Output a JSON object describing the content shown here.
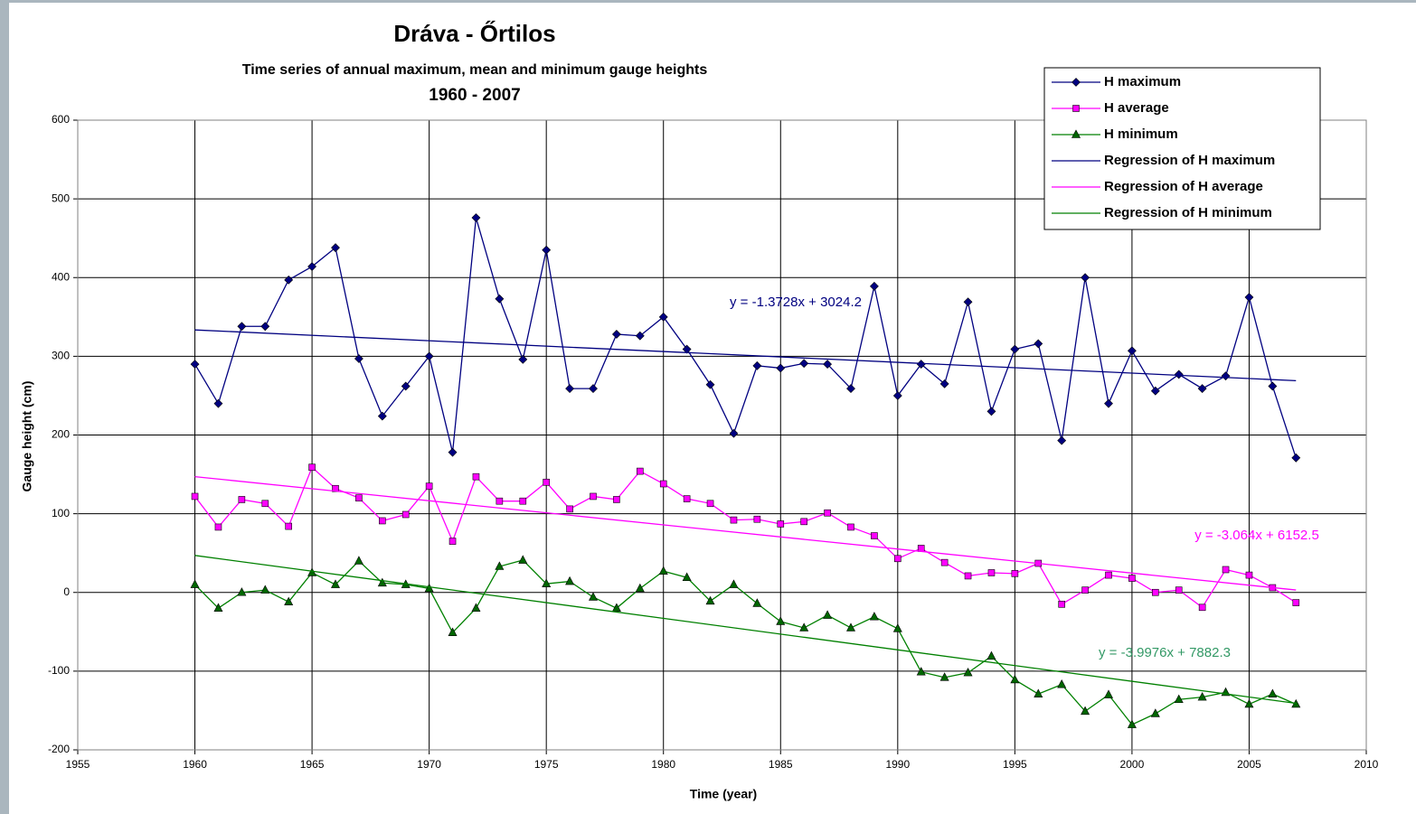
{
  "chart_data": {
    "type": "line",
    "title": "Dráva - Őrtilos",
    "subtitle": "Time series of annual maximum, mean and minimum gauge heights",
    "period": "1960 - 2007",
    "xlabel": "Time (year)",
    "ylabel": "Gauge height (cm)",
    "x": [
      1960,
      1961,
      1962,
      1963,
      1964,
      1965,
      1966,
      1967,
      1968,
      1969,
      1970,
      1971,
      1972,
      1973,
      1974,
      1975,
      1976,
      1977,
      1978,
      1979,
      1980,
      1981,
      1982,
      1983,
      1984,
      1985,
      1986,
      1987,
      1988,
      1989,
      1990,
      1991,
      1992,
      1993,
      1994,
      1995,
      1996,
      1997,
      1998,
      1999,
      2000,
      2001,
      2002,
      2003,
      2004,
      2005,
      2006,
      2007
    ],
    "series": [
      {
        "name": "H maximum",
        "color": "#000080",
        "marker": "diamond",
        "marker_fill": "#000080",
        "values": [
          290,
          240,
          338,
          338,
          397,
          414,
          438,
          297,
          224,
          262,
          300,
          178,
          476,
          373,
          296,
          435,
          259,
          259,
          328,
          326,
          350,
          309,
          264,
          202,
          288,
          285,
          291,
          290,
          259,
          389,
          250,
          290,
          265,
          369,
          230,
          309,
          316,
          193,
          400,
          240,
          307,
          256,
          277,
          259,
          275,
          375,
          262,
          171
        ]
      },
      {
        "name": "H average",
        "color": "#ff00ff",
        "marker": "square",
        "marker_fill": "#ff00ff",
        "values": [
          122,
          83,
          118,
          113,
          84,
          159,
          132,
          120,
          91,
          99,
          135,
          65,
          147,
          116,
          116,
          140,
          106,
          122,
          118,
          154,
          138,
          119,
          113,
          92,
          93,
          87,
          90,
          101,
          83,
          72,
          43,
          56,
          38,
          21,
          25,
          24,
          37,
          -15,
          3,
          22,
          18,
          0,
          3,
          -19,
          29,
          22,
          6,
          -13
        ]
      },
      {
        "name": "H minimum",
        "color": "#008000",
        "marker": "triangle",
        "marker_fill": "#006600",
        "values": [
          10,
          -20,
          0,
          3,
          -12,
          25,
          10,
          40,
          12,
          10,
          5,
          -51,
          -20,
          33,
          41,
          11,
          14,
          -6,
          -20,
          5,
          27,
          19,
          -11,
          10,
          -14,
          -37,
          -45,
          -29,
          -45,
          -31,
          -46,
          -101,
          -108,
          -102,
          -81,
          -111,
          -129,
          -117,
          -151,
          -130,
          -168,
          -154,
          -136,
          -133,
          -127,
          -142,
          -129,
          -142
        ]
      },
      {
        "name": "Regression of H maximum",
        "color": "#000080",
        "marker": "none",
        "x": [
          1960,
          2007
        ],
        "values": [
          333.5,
          269.0
        ]
      },
      {
        "name": "Regression of H average",
        "color": "#ff00ff",
        "marker": "none",
        "x": [
          1960,
          2007
        ],
        "values": [
          147.1,
          3.1
        ]
      },
      {
        "name": "Regression of H minimum",
        "color": "#008000",
        "marker": "none",
        "x": [
          1960,
          2007
        ],
        "values": [
          47.0,
          -140.9
        ]
      }
    ],
    "annotations": [
      {
        "text": "y = -1.3728x + 3024.2",
        "color": "#000080"
      },
      {
        "text": "y = -3.064x + 6152.5",
        "color": "#ff00ff"
      },
      {
        "text": "y = -3.9976x + 7882.3",
        "color": "#339966"
      }
    ],
    "xlim": [
      1955,
      2010
    ],
    "xticks": [
      1955,
      1960,
      1965,
      1970,
      1975,
      1980,
      1985,
      1990,
      1995,
      2000,
      2005,
      2010
    ],
    "ylim": [
      -200,
      600
    ],
    "yticks": [
      -200,
      -100,
      0,
      100,
      200,
      300,
      400,
      500,
      600
    ],
    "grid": true,
    "legend": "upper right"
  }
}
